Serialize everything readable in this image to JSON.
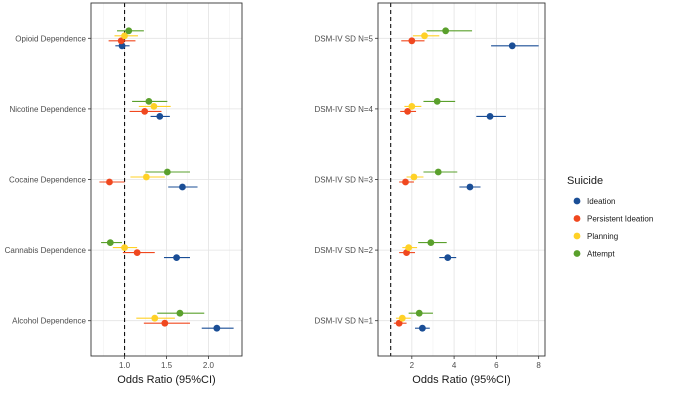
{
  "legend": {
    "title": "Suicide",
    "placement": "right",
    "items": [
      {
        "name": "Ideation",
        "color": "#1a4e96"
      },
      {
        "name": "Persistent Ideation",
        "color": "#f0481f"
      },
      {
        "name": "Planning",
        "color": "#ffd126"
      },
      {
        "name": "Attempt",
        "color": "#5aa02c"
      }
    ]
  },
  "chart_data": [
    {
      "type": "scatter",
      "subtype": "forest-plot",
      "title": "",
      "xlabel": "Odds Ratio (95%CI)",
      "ylabel": "",
      "xlim": [
        0.6,
        2.4
      ],
      "xticks": [
        1.0,
        1.5,
        2.0
      ],
      "xtick_labels": [
        "1.0",
        "1.5",
        "2.0"
      ],
      "reference_line": 1.0,
      "grid": true,
      "categories": [
        "Opioid Dependence",
        "Nicotine Dependence",
        "Cocaine Dependence",
        "Cannabis Dependence",
        "Alcohol Dependence"
      ],
      "series": [
        {
          "name": "Ideation",
          "estimates": [
            0.97,
            1.42,
            1.69,
            1.62,
            2.1
          ],
          "lower": [
            0.89,
            1.31,
            1.52,
            1.47,
            1.92
          ],
          "upper": [
            1.06,
            1.54,
            1.87,
            1.78,
            2.3
          ]
        },
        {
          "name": "Persistent Ideation",
          "estimates": [
            0.96,
            1.24,
            0.82,
            1.15,
            1.48
          ],
          "lower": [
            0.81,
            1.06,
            0.7,
            0.98,
            1.23
          ],
          "upper": [
            1.13,
            1.44,
            1.0,
            1.36,
            1.78
          ]
        },
        {
          "name": "Planning",
          "estimates": [
            1.0,
            1.35,
            1.26,
            1.0,
            1.36
          ],
          "lower": [
            0.88,
            1.17,
            1.07,
            0.86,
            1.14
          ],
          "upper": [
            1.16,
            1.55,
            1.48,
            1.15,
            1.6
          ]
        },
        {
          "name": "Attempt",
          "estimates": [
            1.05,
            1.29,
            1.51,
            0.83,
            1.66
          ],
          "lower": [
            0.91,
            1.09,
            1.25,
            0.72,
            1.39
          ],
          "upper": [
            1.23,
            1.51,
            1.78,
            0.97,
            1.95
          ]
        }
      ]
    },
    {
      "type": "scatter",
      "subtype": "forest-plot",
      "title": "",
      "xlabel": "Odds Ratio (95%CI)",
      "ylabel": "",
      "xlim": [
        0.4,
        8.3
      ],
      "xticks": [
        2,
        4,
        6,
        8
      ],
      "xtick_labels": [
        "2",
        "4",
        "6",
        "8"
      ],
      "reference_line": 1.0,
      "grid": true,
      "categories": [
        "DSM-IV SD N=5",
        "DSM-IV SD N=4",
        "DSM-IV SD N=3",
        "DSM-IV SD N=2",
        "DSM-IV SD N=1"
      ],
      "series": [
        {
          "name": "Ideation",
          "estimates": [
            6.75,
            5.7,
            4.75,
            3.7,
            2.5
          ],
          "lower": [
            5.75,
            5.05,
            4.25,
            3.3,
            2.15
          ],
          "upper": [
            8.0,
            6.45,
            5.25,
            4.1,
            2.85
          ]
        },
        {
          "name": "Persistent Ideation",
          "estimates": [
            2.0,
            1.8,
            1.7,
            1.75,
            1.4
          ],
          "lower": [
            1.5,
            1.45,
            1.4,
            1.4,
            1.15
          ],
          "upper": [
            2.6,
            2.2,
            2.1,
            2.15,
            1.75
          ]
        },
        {
          "name": "Planning",
          "estimates": [
            2.6,
            2.0,
            2.1,
            1.85,
            1.55
          ],
          "lower": [
            2.05,
            1.65,
            1.75,
            1.55,
            1.25
          ],
          "upper": [
            3.3,
            2.45,
            2.55,
            2.25,
            1.95
          ]
        },
        {
          "name": "Attempt",
          "estimates": [
            3.6,
            3.2,
            3.25,
            2.9,
            2.35
          ],
          "lower": [
            2.7,
            2.55,
            2.55,
            2.3,
            1.85
          ],
          "upper": [
            4.85,
            4.05,
            4.15,
            3.65,
            3.0
          ]
        }
      ]
    }
  ]
}
